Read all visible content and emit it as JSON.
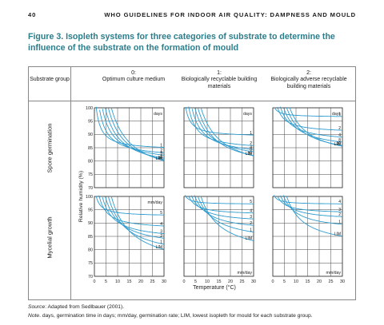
{
  "header": {
    "page_number": "40",
    "running_title": "WHO GUIDELINES FOR INDOOR AIR QUALITY: DAMPNESS AND MOULD"
  },
  "figure": {
    "title": "Figure 3. Isopleth systems for three categories of substrate to determine the influence of the substrate on the formation of mould",
    "col_header_group": "Substrate group",
    "columns": [
      {
        "num": "0:",
        "name": "Optimum culture medium"
      },
      {
        "num": "1:",
        "name": "Biologically recyclable building materials"
      },
      {
        "num": "2:",
        "name": "Biologically adverse recyclable building materials"
      }
    ],
    "row_labels": [
      "Spore germination",
      "Mycelial growth"
    ],
    "y_axis_label": "Relative humidity (%)",
    "x_axis_label": "Temperature (°C)",
    "y_ticks": [
      "100",
      "95",
      "90",
      "85",
      "80",
      "75",
      "70"
    ],
    "x_ticks": [
      "0",
      "5",
      "10",
      "15",
      "20",
      "25",
      "30"
    ]
  },
  "chart_data": {
    "type": "line",
    "xlim": [
      0,
      30
    ],
    "ylim": [
      70,
      100
    ],
    "panels": [
      {
        "row": "Spore germination",
        "col": "0:",
        "unit": "days",
        "isopleths": [
          {
            "label": "1",
            "plateau": 84.0
          },
          {
            "label": "2",
            "plateau": 81.0
          },
          {
            "label": "4",
            "plateau": 79.0
          },
          {
            "label": "8",
            "plateau": 76.5
          },
          {
            "label": "16",
            "plateau": 74.5
          },
          {
            "label": "LIM",
            "plateau": 72.5
          }
        ]
      },
      {
        "row": "Spore germination",
        "col": "1:",
        "unit": "days",
        "isopleths": [
          {
            "label": "1",
            "plateau": 89.0
          },
          {
            "label": "2",
            "plateau": 84.0
          },
          {
            "label": "4",
            "plateau": 81.5
          },
          {
            "label": "8",
            "plateau": 79.5
          },
          {
            "label": "16",
            "plateau": 76.5
          },
          {
            "label": "LIM",
            "plateau": 75.0
          }
        ]
      },
      {
        "row": "Spore germination",
        "col": "2:",
        "unit": "days",
        "isopleths": [
          {
            "label": "1",
            "plateau": 96.5
          },
          {
            "label": "2",
            "plateau": 90.5
          },
          {
            "label": "4",
            "plateau": 87.0
          },
          {
            "label": "8",
            "plateau": 84.0
          },
          {
            "label": "16",
            "plateau": 81.5
          },
          {
            "label": "LIM",
            "plateau": 80.0
          }
        ]
      },
      {
        "row": "Mycelial growth",
        "col": "0:",
        "unit": "mm/day",
        "isopleths": [
          {
            "label": "5",
            "plateau": 92.5
          },
          {
            "label": "4",
            "plateau": 87.5
          },
          {
            "label": "3",
            "plateau": 83.5
          },
          {
            "label": "2",
            "plateau": 80.5
          },
          {
            "label": "1",
            "plateau": 76.5
          },
          {
            "label": "LIM",
            "plateau": 72.5
          }
        ]
      },
      {
        "row": "Mycelial growth",
        "col": "1:",
        "unit": "mm/day",
        "isopleths": [
          {
            "label": "5",
            "plateau": 97.0
          },
          {
            "label": "4",
            "plateau": 93.0
          },
          {
            "label": "3",
            "plateau": 90.0
          },
          {
            "label": "2",
            "plateau": 86.5
          },
          {
            "label": "1",
            "plateau": 82.5
          },
          {
            "label": "LIM",
            "plateau": 77.0
          }
        ]
      },
      {
        "row": "Mycelial growth",
        "col": "2:",
        "unit": "mm/day",
        "isopleths": [
          {
            "label": "4",
            "plateau": 97.0
          },
          {
            "label": "3",
            "plateau": 93.5
          },
          {
            "label": "2",
            "plateau": 91.0
          },
          {
            "label": "1",
            "plateau": 87.0
          },
          {
            "label": "LIM",
            "plateau": 80.5
          }
        ]
      }
    ]
  },
  "footnotes": {
    "source_label": "Source",
    "source_text": ": Adapted from Sedlbauer (2001).",
    "note_label": "Note",
    "note_text": ". days, germination time in days; mm/day, germination rate; LIM, lowest isopleth for mould for each substrate group."
  },
  "colors": {
    "curve": "#2e9ccf",
    "title": "#2c7d8c",
    "grid": "#444444"
  }
}
